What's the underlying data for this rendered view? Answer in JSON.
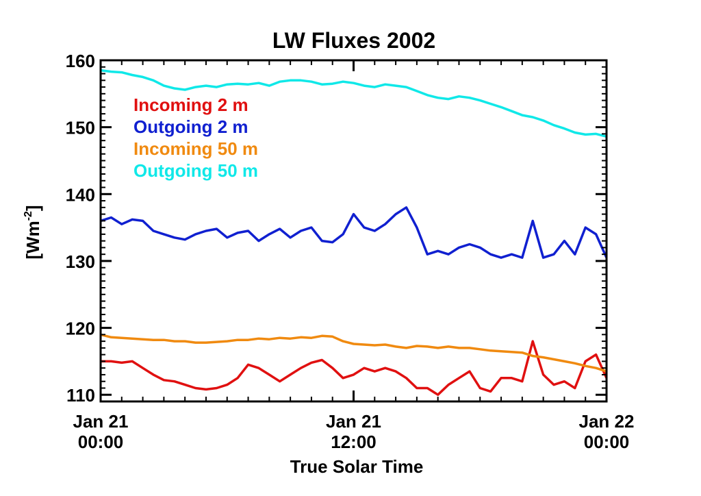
{
  "chart_data": {
    "type": "line",
    "title": "LW Fluxes  2002",
    "xlabel": "True Solar Time",
    "ylabel": "[Wm",
    "ylabel_sup": "-2",
    "ylabel_close": "]",
    "xlim": [
      "2002-01-21T00:00",
      "2002-01-22T00:00"
    ],
    "ylim": [
      109,
      160
    ],
    "yticks": [
      110,
      120,
      130,
      140,
      150,
      160
    ],
    "xticks": [
      {
        "at": "2002-01-21T00:00",
        "line1": "Jan 21",
        "line2": "00:00"
      },
      {
        "at": "2002-01-21T12:00",
        "line1": "Jan 21",
        "line2": "12:00"
      },
      {
        "at": "2002-01-22T00:00",
        "line1": "Jan 22",
        "line2": "00:00"
      }
    ],
    "legend": "top-left",
    "grid": false,
    "x_hours": [
      0,
      0.5,
      1,
      1.5,
      2,
      2.5,
      3,
      3.5,
      4,
      4.5,
      5,
      5.5,
      6,
      6.5,
      7,
      7.5,
      8,
      8.5,
      9,
      9.5,
      10,
      10.5,
      11,
      11.5,
      12,
      12.5,
      13,
      13.5,
      14,
      14.5,
      15,
      15.5,
      16,
      16.5,
      17,
      17.5,
      18,
      18.5,
      19,
      19.5,
      20,
      20.5,
      21,
      21.5,
      22,
      22.5,
      23,
      23.5,
      24
    ],
    "series": [
      {
        "name": "Incoming 2 m",
        "color": "#e01010",
        "values": [
          115.0,
          115.0,
          114.8,
          115.0,
          114.0,
          113.0,
          112.2,
          112.0,
          111.5,
          111.0,
          110.8,
          111.0,
          111.5,
          112.5,
          114.5,
          114.0,
          113.0,
          112.0,
          113.0,
          114.0,
          114.8,
          115.2,
          114.0,
          112.5,
          113.0,
          114.0,
          113.5,
          114.0,
          113.5,
          112.5,
          111.0,
          111.0,
          110.0,
          111.5,
          112.5,
          113.5,
          111.0,
          110.5,
          112.5,
          112.5,
          112.0,
          118.0,
          113.0,
          111.5,
          112.0,
          111.0,
          115.0,
          116.0,
          112.5
        ]
      },
      {
        "name": "Outgoing 2 m",
        "color": "#1020d0",
        "values": [
          136.0,
          136.5,
          135.5,
          136.2,
          136.0,
          134.5,
          134.0,
          133.5,
          133.2,
          134.0,
          134.5,
          134.8,
          133.5,
          134.2,
          134.5,
          133.0,
          134.0,
          134.8,
          133.5,
          134.5,
          135.0,
          133.0,
          132.8,
          134.0,
          137.0,
          135.0,
          134.5,
          135.5,
          137.0,
          138.0,
          135.0,
          131.0,
          131.5,
          131.0,
          132.0,
          132.5,
          132.0,
          131.0,
          130.5,
          131.0,
          130.5,
          136.0,
          130.5,
          131.0,
          133.0,
          131.0,
          135.0,
          134.0,
          130.5
        ]
      },
      {
        "name": "Incoming 50 m",
        "color": "#f08a10",
        "values": [
          119.0,
          118.6,
          118.5,
          118.4,
          118.3,
          118.2,
          118.2,
          118.0,
          118.0,
          117.8,
          117.8,
          117.9,
          118.0,
          118.2,
          118.2,
          118.4,
          118.3,
          118.5,
          118.4,
          118.6,
          118.5,
          118.8,
          118.7,
          118.0,
          117.6,
          117.5,
          117.4,
          117.5,
          117.2,
          117.0,
          117.3,
          117.2,
          117.0,
          117.2,
          117.0,
          117.0,
          116.8,
          116.6,
          116.5,
          116.4,
          116.3,
          115.8,
          115.6,
          115.3,
          115.0,
          114.7,
          114.3,
          114.0,
          113.5
        ]
      },
      {
        "name": "Outgoing 50 m",
        "color": "#10e8e8",
        "values": [
          158.5,
          158.3,
          158.2,
          157.8,
          157.5,
          157.0,
          156.2,
          155.8,
          155.6,
          156.0,
          156.2,
          156.0,
          156.4,
          156.5,
          156.4,
          156.6,
          156.2,
          156.8,
          157.0,
          157.0,
          156.8,
          156.4,
          156.5,
          156.8,
          156.6,
          156.2,
          156.0,
          156.4,
          156.2,
          156.0,
          155.4,
          154.8,
          154.4,
          154.2,
          154.6,
          154.4,
          154.0,
          153.5,
          153.0,
          152.4,
          151.8,
          151.5,
          151.0,
          150.3,
          149.8,
          149.2,
          148.9,
          149.0,
          148.6
        ]
      }
    ]
  }
}
